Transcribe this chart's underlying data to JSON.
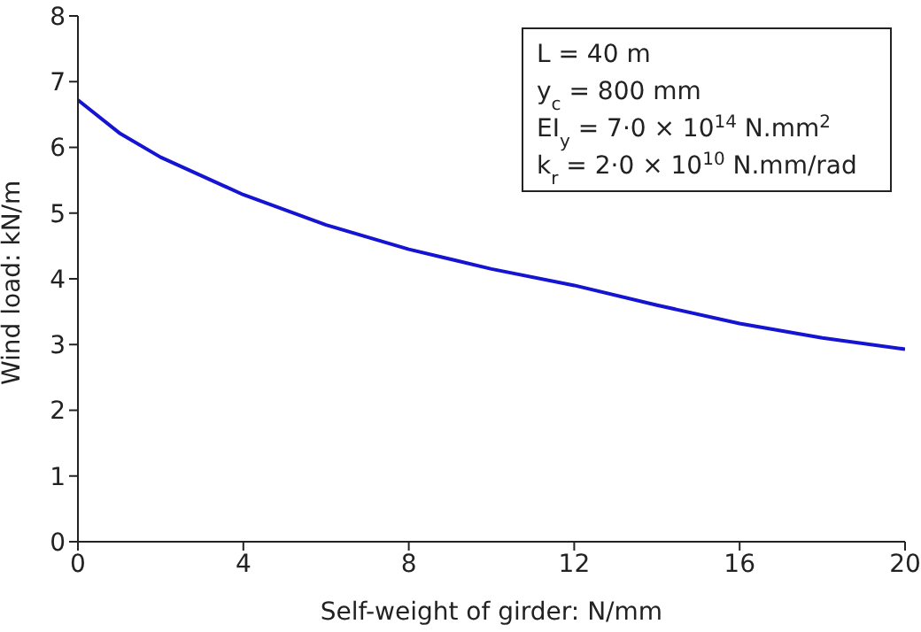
{
  "chart_data": {
    "type": "line",
    "xlabel": "Self-weight of girder: N/mm",
    "ylabel": "Wind load: kN/m",
    "x": [
      0,
      1,
      2,
      4,
      6,
      8,
      10,
      12,
      14,
      16,
      18,
      20
    ],
    "series": [
      {
        "color": "#1414d2",
        "values": [
          6.72,
          6.22,
          5.85,
          5.28,
          4.82,
          4.45,
          4.15,
          3.9,
          3.6,
          3.32,
          3.1,
          2.93
        ]
      }
    ],
    "xlim": [
      0,
      20
    ],
    "xticks": [
      0,
      4,
      8,
      12,
      16,
      20
    ],
    "ylim": [
      0,
      8
    ],
    "yticks": [
      0,
      1,
      2,
      3,
      4,
      5,
      6,
      7,
      8
    ],
    "grid": false,
    "legend": false,
    "marker": "none",
    "line_style": "solid",
    "annotations": [
      "L = 40 m",
      "y$_{c}$ = 800 mm",
      "EI$_{y}$ = 7·0 × 10$^{14}$ N.mm$^{2}$",
      "k$_{r}$ = 2·0 × 10$^{10}$ N.mm/rad"
    ]
  }
}
